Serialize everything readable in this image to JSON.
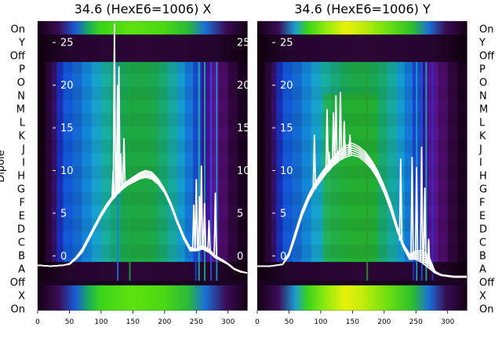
{
  "colors": {
    "cmap": [
      "#130010",
      "#2a0638",
      "#4a1270",
      "#2b1aa8",
      "#0f4fd6",
      "#1486d8",
      "#19b4c0",
      "#19a88a",
      "#1ba845",
      "#36c81a",
      "#7fe80c",
      "#dff20a"
    ],
    "line": "#ffffff",
    "text": "#000000"
  },
  "row_labels": [
    "On",
    "Y",
    "Off",
    "P",
    "O",
    "N",
    "M",
    "L",
    "K",
    "J",
    "I",
    "H",
    "G",
    "F",
    "E",
    "D",
    "C",
    "B",
    "A",
    "Off",
    "X",
    "On"
  ],
  "y_axis_label": "Dipole",
  "chart_data": [
    {
      "type": "heatmap",
      "title": "34.6 (HexE6=1006) X",
      "x_ticks": [
        "0",
        "50",
        "100",
        "150",
        "200",
        "250",
        "300"
      ],
      "x_range": [
        0,
        330
      ],
      "y_ticks": [
        "0",
        "5",
        "10",
        "15",
        "20",
        "25"
      ],
      "y_range": [
        -6.4,
        27.5
      ],
      "grid": false,
      "overlay_series": {
        "description_of_shape": "white traces",
        "x": [
          0,
          20,
          40,
          50,
          60,
          70,
          80,
          90,
          100,
          110,
          120,
          130,
          140,
          150,
          160,
          170,
          180,
          190,
          200,
          210,
          220,
          230,
          240,
          250,
          260,
          270,
          280,
          290,
          300,
          310,
          320,
          330
        ],
        "y_low": [
          -1.1,
          -1.2,
          -1.1,
          -1.0,
          -0.4,
          0.4,
          1.8,
          3.2,
          4.6,
          5.8,
          6.8,
          7.6,
          8.2,
          8.6,
          9.0,
          9.2,
          9.0,
          8.4,
          7.4,
          5.8,
          3.8,
          2.0,
          0.6,
          0.6,
          0.8,
          0.4,
          -0.2,
          -0.6,
          -1.0,
          -1.6,
          -1.9,
          -2.0
        ],
        "y_high": [
          -1.1,
          -1.2,
          -1.1,
          -0.9,
          -0.2,
          0.8,
          2.2,
          3.6,
          5.0,
          6.2,
          7.2,
          8.0,
          8.7,
          9.2,
          9.7,
          10.0,
          9.8,
          9.0,
          7.8,
          6.2,
          4.2,
          2.4,
          1.0,
          0.8,
          1.2,
          0.8,
          0.0,
          -0.4,
          -0.9,
          -1.5,
          -1.8,
          -2.0
        ],
        "spikes": [
          {
            "x": 119,
            "y": 10.0
          },
          {
            "x": 121,
            "y": 27.2
          },
          {
            "x": 126,
            "y": 20.0
          },
          {
            "x": 128,
            "y": 22.2
          },
          {
            "x": 131,
            "y": 12.0
          },
          {
            "x": 136,
            "y": 13.8
          },
          {
            "x": 246,
            "y": 6.0
          },
          {
            "x": 250,
            "y": 9.0
          },
          {
            "x": 255,
            "y": 7.0
          },
          {
            "x": 258,
            "y": 10.6
          },
          {
            "x": 263,
            "y": 6.2
          },
          {
            "x": 270,
            "y": 4.2
          },
          {
            "x": 280,
            "y": 7.4
          },
          {
            "x": 282,
            "y": 0.0
          }
        ]
      }
    },
    {
      "type": "heatmap",
      "title": "34.6 (HexE6=1006) Y",
      "x_ticks": [
        "0",
        "50",
        "100",
        "150",
        "200",
        "250",
        "300"
      ],
      "x_range": [
        0,
        330
      ],
      "y_ticks": [
        "0",
        "5",
        "10",
        "15",
        "20",
        "25"
      ],
      "y_range": [
        -6.4,
        27.5
      ],
      "grid": false,
      "overlay_series": {
        "description_of_shape": "white traces",
        "x": [
          0,
          20,
          40,
          50,
          60,
          70,
          80,
          90,
          100,
          110,
          120,
          130,
          140,
          150,
          160,
          170,
          180,
          190,
          200,
          210,
          220,
          230,
          240,
          250,
          260,
          270,
          280,
          290,
          300,
          310,
          320,
          330
        ],
        "y_low": [
          -1.2,
          -1.2,
          -1.0,
          0.0,
          2.2,
          4.6,
          6.4,
          7.8,
          8.8,
          9.8,
          10.6,
          11.2,
          11.6,
          11.8,
          11.6,
          11.0,
          10.2,
          9.0,
          7.4,
          5.4,
          3.0,
          1.0,
          -0.4,
          -0.4,
          -0.8,
          -1.4,
          -2.0,
          -2.3,
          -2.4,
          -2.5,
          -2.5,
          -2.5
        ],
        "y_high": [
          -1.2,
          -1.2,
          -1.0,
          0.4,
          2.8,
          5.2,
          7.0,
          8.4,
          9.6,
          10.6,
          11.6,
          12.4,
          12.9,
          13.2,
          12.8,
          12.2,
          11.2,
          9.9,
          8.2,
          6.2,
          3.6,
          1.4,
          0.2,
          0.6,
          0.6,
          0.0,
          -1.8,
          -2.2,
          -2.3,
          -2.4,
          -2.4,
          -2.4
        ],
        "spikes": [
          {
            "x": 90,
            "y": 14.2
          },
          {
            "x": 110,
            "y": 17.2
          },
          {
            "x": 113,
            "y": 12.2
          },
          {
            "x": 120,
            "y": 16.8
          },
          {
            "x": 124,
            "y": 18.8
          },
          {
            "x": 131,
            "y": 19.2
          },
          {
            "x": 137,
            "y": 15.8
          },
          {
            "x": 146,
            "y": 14.2
          },
          {
            "x": 226,
            "y": 11.4
          },
          {
            "x": 244,
            "y": 11.6
          },
          {
            "x": 251,
            "y": 10.4
          },
          {
            "x": 259,
            "y": 12.8
          },
          {
            "x": 264,
            "y": 8.0
          },
          {
            "x": 270,
            "y": 2.0
          }
        ]
      }
    }
  ]
}
